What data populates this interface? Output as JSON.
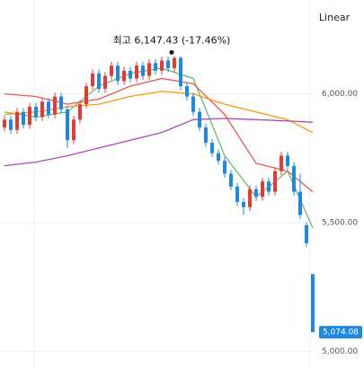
{
  "chart_data": {
    "type": "candlestick",
    "scale_label": "Linear",
    "annotation": "최고 6,147.43 (-17.46%)",
    "annotation_value": 6147.43,
    "annotation_index": 27,
    "ylim": [
      4935,
      6365
    ],
    "yticks": [
      {
        "value": 5000,
        "label": "5,000.00"
      },
      {
        "value": 5500,
        "label": "5,500.00"
      },
      {
        "value": 6000,
        "label": "6,000.00"
      }
    ],
    "grid": true,
    "up_color": "#e53935",
    "down_color": "#1e88e5",
    "last_price": {
      "value": 5074.08,
      "label": "5,074.08"
    },
    "open": [
      5870,
      5900,
      5860,
      5930,
      5880,
      5950,
      5910,
      5970,
      5920,
      5990,
      5940,
      5820,
      5900,
      5960,
      6030,
      6080,
      6020,
      6070,
      6110,
      6050,
      6090,
      6060,
      6110,
      6070,
      6120,
      6090,
      6130,
      6100,
      6140,
      6030,
      5990,
      5930,
      5870,
      5810,
      5770,
      5740,
      5690,
      5640,
      5580,
      5560,
      5630,
      5600,
      5660,
      5620,
      5700,
      5760,
      5720,
      5620,
      5490,
      5300
    ],
    "close": [
      5900,
      5860,
      5930,
      5880,
      5950,
      5910,
      5970,
      5920,
      5990,
      5940,
      5820,
      5900,
      5960,
      6030,
      6080,
      6020,
      6070,
      6110,
      6050,
      6090,
      6060,
      6110,
      6070,
      6120,
      6090,
      6130,
      6100,
      6140,
      6030,
      5990,
      5930,
      5870,
      5810,
      5770,
      5740,
      5690,
      5640,
      5580,
      5560,
      5630,
      5600,
      5660,
      5620,
      5700,
      5760,
      5720,
      5620,
      5530,
      5420,
      5074.08
    ],
    "high": [
      5915,
      5915,
      5945,
      5945,
      5965,
      5965,
      5985,
      5985,
      6005,
      6005,
      5955,
      5915,
      5975,
      6045,
      6095,
      6095,
      6085,
      6125,
      6125,
      6105,
      6105,
      6125,
      6125,
      6135,
      6135,
      6145,
      6145,
      6147.43,
      6147,
      6045,
      6005,
      5945,
      5885,
      5825,
      5785,
      5755,
      5705,
      5655,
      5595,
      5645,
      5645,
      5675,
      5675,
      5715,
      5775,
      5775,
      5735,
      5690,
      5500,
      5300
    ],
    "low": [
      5855,
      5845,
      5845,
      5865,
      5865,
      5895,
      5895,
      5905,
      5905,
      5925,
      5790,
      5805,
      5885,
      5945,
      6015,
      6005,
      6005,
      6055,
      6035,
      6035,
      6045,
      6045,
      6055,
      6055,
      6075,
      6075,
      6085,
      6085,
      6015,
      5975,
      5915,
      5855,
      5795,
      5755,
      5725,
      5675,
      5625,
      5565,
      5530,
      5545,
      5585,
      5585,
      5605,
      5605,
      5685,
      5705,
      5605,
      5515,
      5405,
      5074.08
    ],
    "ma_x": [
      0,
      5,
      10,
      15,
      20,
      25,
      30,
      35,
      40,
      45,
      49
    ],
    "series": [
      {
        "color": "#66bb6a",
        "values": [
          5930,
          5910,
          5930,
          6030,
          6080,
          6100,
          6060,
          5760,
          5600,
          5700,
          5480
        ]
      },
      {
        "color": "#ef5350",
        "values": [
          6000,
          5990,
          5960,
          5980,
          6030,
          6060,
          6040,
          5920,
          5730,
          5700,
          5620
        ]
      },
      {
        "color": "#ff9800",
        "values": [
          5920,
          5930,
          5950,
          5960,
          5990,
          6010,
          6000,
          5960,
          5930,
          5900,
          5850
        ]
      },
      {
        "color": "#ab47bc",
        "values": [
          5721,
          5735,
          5760,
          5790,
          5820,
          5850,
          5900,
          5905,
          5900,
          5895,
          5890
        ]
      }
    ]
  }
}
